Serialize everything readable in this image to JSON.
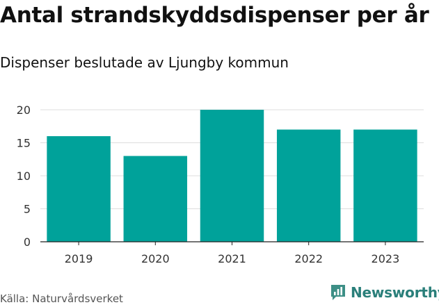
{
  "chart_data": {
    "type": "bar",
    "title": "Antal strandskyddsdispenser per år",
    "subtitle": "Dispenser beslutade av Ljungby kommun",
    "categories": [
      "2019",
      "2020",
      "2021",
      "2022",
      "2023"
    ],
    "values": [
      16,
      13,
      20,
      17,
      17
    ],
    "ylim": [
      0,
      20
    ],
    "yticks": [
      0,
      5,
      10,
      15,
      20
    ],
    "xlabel": "",
    "ylabel": "",
    "grid": true,
    "bar_color": "#00a29a"
  },
  "footer": {
    "source": "Källa: Naturvårdsverket",
    "brand": "Newsworthy",
    "brand_icon": "newsworthy-logo-icon"
  }
}
